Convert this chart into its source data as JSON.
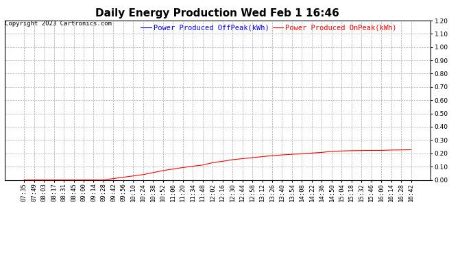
{
  "title": "Daily Energy Production Wed Feb 1 16:46",
  "copyright": "Copyright 2023 Cartronics.com",
  "legend_offpeak": "Power Produced OffPeak(kWh)",
  "legend_onpeak": "Power Produced OnPeak(kWh)",
  "offpeak_color": "#0000ff",
  "onpeak_color": "#ff0000",
  "background_color": "#ffffff",
  "grid_color": "#aaaaaa",
  "ylim": [
    0.0,
    1.2
  ],
  "yticks": [
    0.0,
    0.1,
    0.2,
    0.3,
    0.4,
    0.5,
    0.6,
    0.7,
    0.8,
    0.9,
    1.0,
    1.1,
    1.2
  ],
  "x_labels": [
    "07:35",
    "07:49",
    "08:03",
    "08:17",
    "08:31",
    "08:45",
    "09:00",
    "09:14",
    "09:28",
    "09:42",
    "09:56",
    "10:10",
    "10:24",
    "10:38",
    "10:52",
    "11:06",
    "11:20",
    "11:34",
    "11:48",
    "12:02",
    "12:16",
    "12:30",
    "12:44",
    "12:58",
    "13:12",
    "13:26",
    "13:40",
    "13:54",
    "14:08",
    "14:22",
    "14:36",
    "14:50",
    "15:04",
    "15:18",
    "15:32",
    "15:46",
    "16:00",
    "16:14",
    "16:28",
    "16:42"
  ],
  "onpeak_values": [
    0.0,
    0.0,
    0.0,
    0.0,
    0.0,
    0.0,
    0.0,
    0.0,
    0.0,
    0.01,
    0.02,
    0.03,
    0.04,
    0.055,
    0.07,
    0.082,
    0.093,
    0.103,
    0.112,
    0.13,
    0.14,
    0.152,
    0.16,
    0.168,
    0.175,
    0.183,
    0.188,
    0.193,
    0.197,
    0.202,
    0.207,
    0.215,
    0.218,
    0.22,
    0.221,
    0.222,
    0.222,
    0.225,
    0.226,
    0.228
  ],
  "offpeak_values": [
    0.0,
    0.0,
    0.0,
    0.0,
    0.0,
    0.0,
    0.0,
    0.0,
    0.0,
    0.0,
    0.0,
    0.0,
    0.0,
    0.0,
    0.0,
    0.0,
    0.0,
    0.0,
    0.0,
    0.0,
    0.0,
    0.0,
    0.0,
    0.0,
    0.0,
    0.0,
    0.0,
    0.0,
    0.0,
    0.0,
    0.0,
    0.0,
    0.0,
    0.0,
    0.0,
    0.0,
    0.0,
    0.0,
    0.0,
    0.0
  ],
  "title_fontsize": 11,
  "tick_fontsize": 6.5,
  "legend_fontsize": 7.5,
  "copyright_fontsize": 6.5
}
